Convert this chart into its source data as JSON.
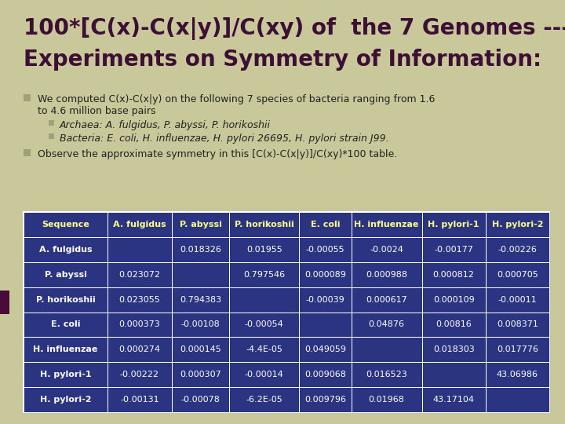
{
  "title_line1": "100*[C(x)-C(x|y)]/C(xy) of  the 7 Genomes ---",
  "title_line2": "Experiments on Symmetry of Information:",
  "bg_color": "#c8c89a",
  "title_color": "#3d0f35",
  "table_header": [
    "Sequence",
    "A. fulgidus",
    "P. abyssi",
    "P. horikoshii",
    "E. coli",
    "H. influenzae",
    "H. pylori-1",
    "H. pylori-2"
  ],
  "table_rows": [
    [
      "A. fulgidus",
      "",
      "0.018326",
      "0.01955",
      "-0.00055",
      "-0.0024",
      "-0.00177",
      "-0.00226"
    ],
    [
      "P. abyssi",
      "0.023072",
      "",
      "0.797546",
      "0.000089",
      "0.000988",
      "0.000812",
      "0.000705"
    ],
    [
      "P. horikoshii",
      "0.023055",
      "0.794383",
      "",
      "-0.00039",
      "0.000617",
      "0.000109",
      "-0.00011"
    ],
    [
      "E. coli",
      "0.000373",
      "-0.00108",
      "-0.00054",
      "",
      "0.04876",
      "0.00816",
      "0.008371"
    ],
    [
      "H. influenzae",
      "0.000274",
      "0.000145",
      "-4.4E-05",
      "0.049059",
      "",
      "0.018303",
      "0.017776"
    ],
    [
      "H. pylori-1",
      "-0.00222",
      "0.000307",
      "-0.00014",
      "0.009068",
      "0.016523",
      "",
      "43.06986"
    ],
    [
      "H. pylori-2",
      "-0.00131",
      "-0.00078",
      "-6.2E-05",
      "0.009796",
      "0.01968",
      "43.17104",
      ""
    ]
  ],
  "table_bg": "#2b3480",
  "table_text_color": "#ffffff",
  "table_header_text_color": "#ffff88",
  "left_bar_color": "#4a0a3a",
  "sq_color": "#a0a07a",
  "body_text_color": "#222222"
}
